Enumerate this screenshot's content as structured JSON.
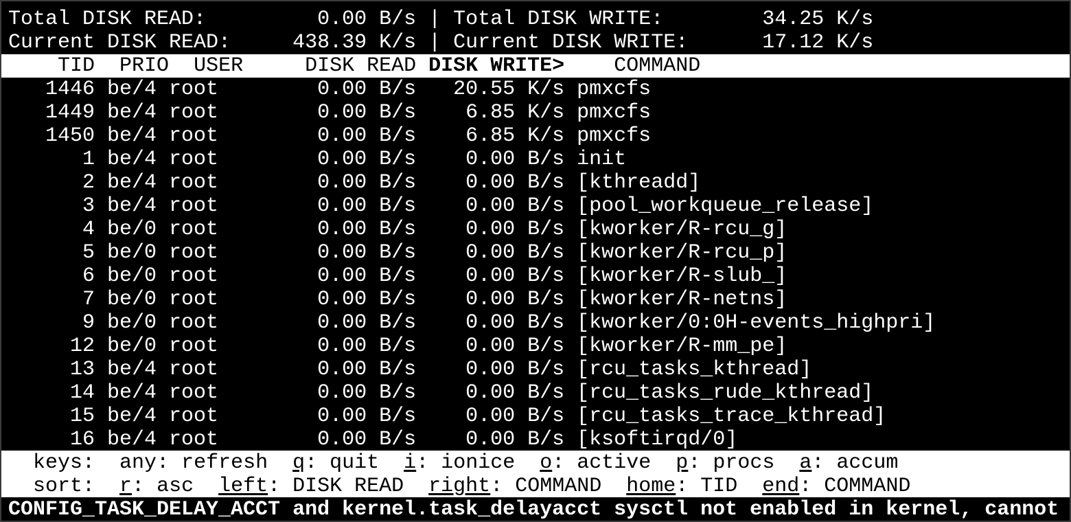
{
  "summary": {
    "total_read_label": "Total DISK READ:",
    "total_read": "0.00 B/s",
    "total_write_label": "Total DISK WRITE:",
    "total_write": "34.25 K/s",
    "current_read_label": "Current DISK READ:",
    "current_read": "438.39 K/s",
    "current_write_label": "Current DISK WRITE:",
    "current_write": "17.12 K/s",
    "separator": "|"
  },
  "columns": {
    "tid": "TID",
    "prio": "PRIO",
    "user": "USER",
    "disk_read": "DISK READ",
    "disk_write": "DISK WRITE>",
    "command": "COMMAND"
  },
  "rows": [
    {
      "tid": "1446",
      "prio": "be/4",
      "user": "root",
      "read": "0.00 B/s",
      "write": "20.55 K/s",
      "command": "pmxcfs"
    },
    {
      "tid": "1449",
      "prio": "be/4",
      "user": "root",
      "read": "0.00 B/s",
      "write": "6.85 K/s",
      "command": "pmxcfs"
    },
    {
      "tid": "1450",
      "prio": "be/4",
      "user": "root",
      "read": "0.00 B/s",
      "write": "6.85 K/s",
      "command": "pmxcfs"
    },
    {
      "tid": "1",
      "prio": "be/4",
      "user": "root",
      "read": "0.00 B/s",
      "write": "0.00 B/s",
      "command": "init"
    },
    {
      "tid": "2",
      "prio": "be/4",
      "user": "root",
      "read": "0.00 B/s",
      "write": "0.00 B/s",
      "command": "[kthreadd]"
    },
    {
      "tid": "3",
      "prio": "be/4",
      "user": "root",
      "read": "0.00 B/s",
      "write": "0.00 B/s",
      "command": "[pool_workqueue_release]"
    },
    {
      "tid": "4",
      "prio": "be/0",
      "user": "root",
      "read": "0.00 B/s",
      "write": "0.00 B/s",
      "command": "[kworker/R-rcu_g]"
    },
    {
      "tid": "5",
      "prio": "be/0",
      "user": "root",
      "read": "0.00 B/s",
      "write": "0.00 B/s",
      "command": "[kworker/R-rcu_p]"
    },
    {
      "tid": "6",
      "prio": "be/0",
      "user": "root",
      "read": "0.00 B/s",
      "write": "0.00 B/s",
      "command": "[kworker/R-slub_]"
    },
    {
      "tid": "7",
      "prio": "be/0",
      "user": "root",
      "read": "0.00 B/s",
      "write": "0.00 B/s",
      "command": "[kworker/R-netns]"
    },
    {
      "tid": "9",
      "prio": "be/0",
      "user": "root",
      "read": "0.00 B/s",
      "write": "0.00 B/s",
      "command": "[kworker/0:0H-events_highpri]"
    },
    {
      "tid": "12",
      "prio": "be/0",
      "user": "root",
      "read": "0.00 B/s",
      "write": "0.00 B/s",
      "command": "[kworker/R-mm_pe]"
    },
    {
      "tid": "13",
      "prio": "be/4",
      "user": "root",
      "read": "0.00 B/s",
      "write": "0.00 B/s",
      "command": "[rcu_tasks_kthread]"
    },
    {
      "tid": "14",
      "prio": "be/4",
      "user": "root",
      "read": "0.00 B/s",
      "write": "0.00 B/s",
      "command": "[rcu_tasks_rude_kthread]"
    },
    {
      "tid": "15",
      "prio": "be/4",
      "user": "root",
      "read": "0.00 B/s",
      "write": "0.00 B/s",
      "command": "[rcu_tasks_trace_kthread]"
    },
    {
      "tid": "16",
      "prio": "be/4",
      "user": "root",
      "read": "0.00 B/s",
      "write": "0.00 B/s",
      "command": "[ksoftirqd/0]"
    }
  ],
  "keys": {
    "label": "keys:",
    "items": [
      {
        "key": "any",
        "action": "refresh",
        "underline": false
      },
      {
        "key": "q",
        "action": "quit",
        "underline": true
      },
      {
        "key": "i",
        "action": "ionice",
        "underline": true
      },
      {
        "key": "o",
        "action": "active",
        "underline": true
      },
      {
        "key": "p",
        "action": "procs",
        "underline": true
      },
      {
        "key": "a",
        "action": "accum",
        "underline": true
      }
    ]
  },
  "sort": {
    "label": "sort:",
    "items": [
      {
        "key": "r",
        "action": "asc",
        "underline": true
      },
      {
        "key": "left",
        "action": "DISK READ",
        "underline": true
      },
      {
        "key": "right",
        "action": "COMMAND",
        "underline": true
      },
      {
        "key": "home",
        "action": "TID",
        "underline": true
      },
      {
        "key": "end",
        "action": "COMMAND",
        "underline": true
      }
    ]
  },
  "warning": "CONFIG_TASK_DELAY_ACCT and kernel.task_delayacct sysctl not enabled in kernel, cannot",
  "colors": {
    "background": "#000000",
    "foreground": "#ffffff",
    "header_band": "#ffffff"
  }
}
